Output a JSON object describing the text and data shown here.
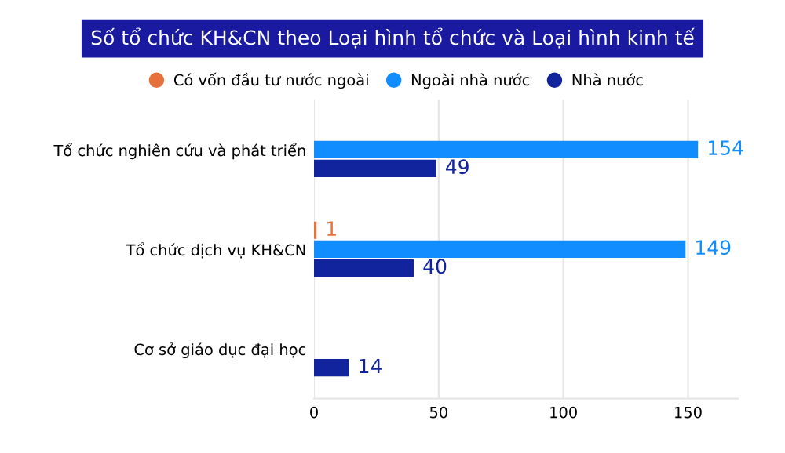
{
  "chart_data": {
    "type": "bar",
    "orientation": "horizontal",
    "title": "Số tổ chức KH&CN theo Loại hình tổ chức và Loại hình kinh tế",
    "categories": [
      "Tổ chức nghiên cứu và phát triển",
      "Tổ chức dịch vụ KH&CN",
      "Cơ sở giáo dục đại học"
    ],
    "series": [
      {
        "name": "Có vốn đầu tư nước ngoài",
        "color": "#e8703a",
        "values": [
          null,
          1,
          null
        ]
      },
      {
        "name": "Ngoài nhà nước",
        "color": "#118dff",
        "values": [
          154,
          149,
          null
        ]
      },
      {
        "name": "Nhà nước",
        "color": "#12239e",
        "values": [
          49,
          40,
          14
        ]
      }
    ],
    "xlim": [
      0,
      170
    ],
    "xticks": [
      0,
      50,
      100,
      150
    ],
    "grid": "x",
    "legend": "top",
    "data_labels": true
  }
}
